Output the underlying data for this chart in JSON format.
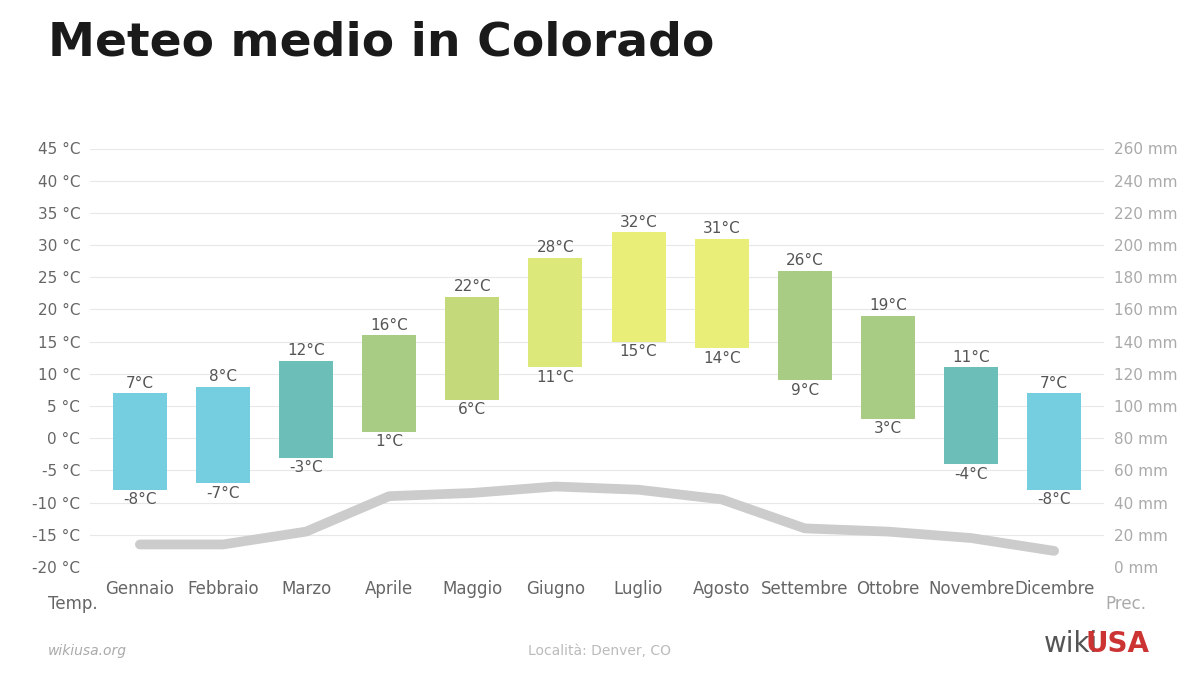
{
  "months": [
    "Gennaio",
    "Febbraio",
    "Marzo",
    "Aprile",
    "Maggio",
    "Giugno",
    "Luglio",
    "Agosto",
    "Settembre",
    "Ottobre",
    "Novembre",
    "Dicembre"
  ],
  "temp_max": [
    7,
    8,
    12,
    16,
    22,
    28,
    32,
    31,
    26,
    19,
    11,
    7
  ],
  "temp_min": [
    -8,
    -7,
    -3,
    1,
    6,
    11,
    15,
    14,
    9,
    3,
    -4,
    -8
  ],
  "bar_colors": [
    "#74CEDF",
    "#74CEDF",
    "#6BBFB8",
    "#A8CC84",
    "#C4DA7A",
    "#DDE87A",
    "#E8EE78",
    "#E8EE78",
    "#A8CC84",
    "#A8CC84",
    "#6BBFB8",
    "#74CEDF"
  ],
  "precip_line_y": [
    -16.5,
    -16.5,
    -14.5,
    -9.0,
    -8.5,
    -7.5,
    -8.0,
    -9.5,
    -14.0,
    -14.5,
    -15.5,
    -17.5
  ],
  "title": "Meteo medio in Colorado",
  "temp_label": "Temp.",
  "prec_label": "Prec.",
  "locality": "Località: Denver, CO",
  "website": "wikiusa.org",
  "wiki_text": "wiki",
  "usa_text": "USA",
  "temp_ylim_min": -20,
  "temp_ylim_max": 45,
  "temp_ticks": [
    -20,
    -15,
    -10,
    -5,
    0,
    5,
    10,
    15,
    20,
    25,
    30,
    35,
    40,
    45
  ],
  "prec_ylim_min": 0,
  "prec_ylim_max": 260,
  "prec_ticks": [
    0,
    20,
    40,
    60,
    80,
    100,
    120,
    140,
    160,
    180,
    200,
    220,
    240,
    260
  ],
  "bg_color": "#FFFFFF",
  "line_color": "#CCCCCC",
  "line_width": 7,
  "title_fontsize": 34,
  "axis_label_fontsize": 12,
  "tick_fontsize": 11,
  "annotation_fontsize": 11
}
